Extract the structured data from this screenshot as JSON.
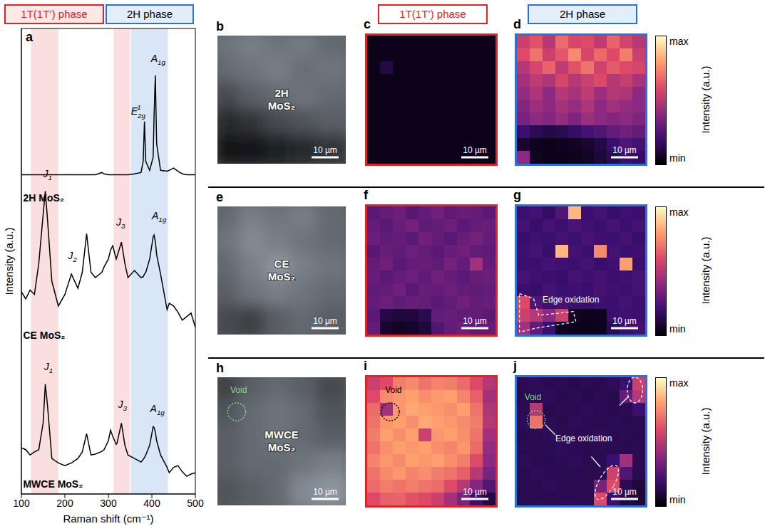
{
  "headers": {
    "left": "1T(1T’) phase",
    "right": "2H phase"
  },
  "chart_data": {
    "type": "line",
    "letter": "a",
    "x_label": "Raman shift (cm⁻¹)",
    "y_label": "Intensity (a.u.)",
    "x": [
      100,
      110,
      120,
      130,
      140,
      150,
      155,
      160,
      170,
      185,
      200,
      215,
      230,
      240,
      250,
      260,
      270,
      285,
      290,
      300,
      305,
      310,
      318,
      320,
      330,
      338,
      345,
      360,
      375,
      380,
      383,
      386,
      395,
      403,
      405,
      408,
      411,
      420,
      435,
      440,
      450,
      460,
      470,
      480,
      490,
      500
    ],
    "xlim": [
      100,
      500
    ],
    "xticks": [
      100,
      200,
      300,
      400,
      500
    ],
    "ylim": [
      0,
      10.5
    ],
    "tick_labels": "x",
    "series": [
      {
        "name": "2H MoS₂",
        "color": "#000000",
        "label_at": [
          104,
          6.6
        ],
        "values": [
          7.2,
          7.2,
          7.2,
          7.2,
          7.2,
          7.2,
          7.2,
          7.2,
          7.2,
          7.2,
          7.2,
          7.2,
          7.2,
          7.2,
          7.2,
          7.2,
          7.2,
          7.25,
          7.22,
          7.2,
          7.2,
          7.2,
          7.2,
          7.2,
          7.2,
          7.2,
          7.2,
          7.22,
          7.25,
          7.5,
          8.4,
          7.5,
          7.3,
          7.6,
          8.5,
          9.44,
          7.9,
          7.3,
          7.28,
          7.3,
          7.35,
          7.28,
          7.22,
          7.2,
          7.2,
          7.2
        ]
      },
      {
        "name": "CE MoS₂",
        "color": "#000000",
        "label_at": [
          104,
          3.5
        ],
        "values": [
          4.56,
          4.4,
          4.6,
          4.5,
          5.2,
          6.3,
          6.83,
          6.2,
          4.8,
          4.24,
          4.5,
          4.96,
          4.64,
          5.0,
          5.87,
          5.0,
          4.88,
          5.0,
          5.12,
          5.3,
          5.5,
          5.6,
          5.3,
          5.36,
          5.68,
          5.2,
          4.88,
          5.04,
          4.88,
          4.9,
          4.96,
          5.0,
          5.3,
          5.8,
          5.84,
          5.7,
          5.4,
          4.96,
          4.16,
          4.3,
          4.24,
          4.1,
          3.92,
          4.0,
          4.08,
          3.76
        ]
      },
      {
        "name": "MWCE MoS₂",
        "color": "#000000",
        "label_at": [
          104,
          0.15
        ],
        "values": [
          1.04,
          1.0,
          0.88,
          0.95,
          1.0,
          1.6,
          2.48,
          2.0,
          0.8,
          0.7,
          0.64,
          0.7,
          0.8,
          0.95,
          1.36,
          0.88,
          0.9,
          0.96,
          1.0,
          1.2,
          1.44,
          1.3,
          1.12,
          1.15,
          1.6,
          1.1,
          0.88,
          0.8,
          0.72,
          0.78,
          0.82,
          0.88,
          1.1,
          1.52,
          1.5,
          1.4,
          1.2,
          0.88,
          0.6,
          0.48,
          0.6,
          0.64,
          0.5,
          0.4,
          0.45,
          0.48
        ]
      }
    ],
    "bands": [
      {
        "x1": 122,
        "x2": 185,
        "color": "#f7b5b5"
      },
      {
        "x1": 312,
        "x2": 350,
        "color": "#f7b5b5"
      },
      {
        "x1": 352,
        "x2": 437,
        "color": "#a9c8ee"
      }
    ],
    "peak_labels": [
      {
        "base": "E",
        "sub": "2g",
        "sup": "1",
        "x": 352,
        "y": 8.55
      },
      {
        "base": "A",
        "sub": "1g",
        "x": 398,
        "y": 9.75
      },
      {
        "base": "J",
        "sub": "1",
        "x": 150,
        "y": 7.15
      },
      {
        "base": "J",
        "sub": "2",
        "x": 207,
        "y": 5.3
      },
      {
        "base": "J",
        "sub": "3",
        "x": 318,
        "y": 6.05
      },
      {
        "base": "A",
        "sub": "1g",
        "x": 400,
        "y": 6.2
      },
      {
        "base": "J",
        "sub": "1",
        "x": 152,
        "y": 2.8
      },
      {
        "base": "J",
        "sub": "3",
        "x": 322,
        "y": 1.95
      },
      {
        "base": "A",
        "sub": "1g",
        "x": 396,
        "y": 1.85
      }
    ]
  },
  "panels": [
    {
      "letter": "b",
      "kind": "optical",
      "label": [
        "2H",
        "MoS₂"
      ],
      "scale_bar": "10 µm",
      "brightness": [
        [
          0.55,
          0.6,
          0.55,
          0.58,
          0.5
        ],
        [
          0.5,
          0.55,
          0.6,
          0.52,
          0.55
        ],
        [
          0.35,
          0.45,
          0.5,
          0.55,
          0.5
        ],
        [
          0.2,
          0.25,
          0.35,
          0.4,
          0.45
        ],
        [
          0.1,
          0.12,
          0.15,
          0.2,
          0.25
        ]
      ]
    },
    {
      "letter": "c",
      "kind": "map",
      "color": "#e02424",
      "scale_bar": "10 µm",
      "cells": [
        [
          0.04,
          0.04,
          0.04,
          0.04,
          0.04,
          0.04,
          0.04,
          0.04,
          0.04,
          0.04
        ],
        [
          0.04,
          0.04,
          0.04,
          0.04,
          0.04,
          0.04,
          0.04,
          0.04,
          0.04,
          0.04
        ],
        [
          0.04,
          0.12,
          0.04,
          0.04,
          0.04,
          0.04,
          0.04,
          0.04,
          0.04,
          0.04
        ],
        [
          0.04,
          0.04,
          0.04,
          0.04,
          0.04,
          0.04,
          0.04,
          0.04,
          0.04,
          0.04
        ],
        [
          0.04,
          0.04,
          0.04,
          0.04,
          0.04,
          0.04,
          0.04,
          0.04,
          0.04,
          0.04
        ],
        [
          0.04,
          0.04,
          0.04,
          0.04,
          0.04,
          0.04,
          0.04,
          0.04,
          0.04,
          0.04
        ],
        [
          0.04,
          0.04,
          0.04,
          0.04,
          0.04,
          0.04,
          0.04,
          0.04,
          0.04,
          0.04
        ],
        [
          0.04,
          0.04,
          0.04,
          0.04,
          0.04,
          0.04,
          0.04,
          0.04,
          0.04,
          0.04
        ],
        [
          0.04,
          0.04,
          0.04,
          0.04,
          0.04,
          0.04,
          0.04,
          0.04,
          0.04,
          0.04
        ],
        [
          0.04,
          0.04,
          0.04,
          0.04,
          0.04,
          0.04,
          0.04,
          0.04,
          0.04,
          0.04
        ]
      ]
    },
    {
      "letter": "d",
      "kind": "map",
      "color": "#2a72d8",
      "scale_bar": "10 µm",
      "cells": [
        [
          0.55,
          0.62,
          0.5,
          0.68,
          0.58,
          0.6,
          0.52,
          0.66,
          0.57,
          0.5
        ],
        [
          0.6,
          0.7,
          0.55,
          0.63,
          0.75,
          0.58,
          0.68,
          0.6,
          0.72,
          0.55
        ],
        [
          0.5,
          0.58,
          0.66,
          0.52,
          0.62,
          0.7,
          0.56,
          0.64,
          0.6,
          0.58
        ],
        [
          0.45,
          0.52,
          0.48,
          0.58,
          0.5,
          0.55,
          0.6,
          0.5,
          0.54,
          0.47
        ],
        [
          0.42,
          0.48,
          0.4,
          0.5,
          0.46,
          0.52,
          0.44,
          0.5,
          0.48,
          0.4
        ],
        [
          0.38,
          0.44,
          0.4,
          0.46,
          0.42,
          0.48,
          0.4,
          0.45,
          0.42,
          0.4
        ],
        [
          0.35,
          0.4,
          0.38,
          0.42,
          0.36,
          0.44,
          0.4,
          0.38,
          0.4,
          0.36
        ],
        [
          0.2,
          0.15,
          0.12,
          0.14,
          0.18,
          0.22,
          0.25,
          0.3,
          0.33,
          0.3
        ],
        [
          0.08,
          0.05,
          0.04,
          0.05,
          0.06,
          0.08,
          0.12,
          0.2,
          0.25,
          0.22
        ],
        [
          0.4,
          0.06,
          0.04,
          0.04,
          0.05,
          0.06,
          0.1,
          0.15,
          0.2,
          0.18
        ]
      ]
    },
    {
      "letter": "e",
      "kind": "optical",
      "label": [
        "CE",
        "MoS₂"
      ],
      "scale_bar": "10 µm",
      "brightness": [
        [
          0.5,
          0.6,
          0.55,
          0.6,
          0.5
        ],
        [
          0.55,
          0.65,
          0.6,
          0.55,
          0.5
        ],
        [
          0.5,
          0.6,
          0.7,
          0.6,
          0.55
        ],
        [
          0.45,
          0.55,
          0.6,
          0.55,
          0.5
        ],
        [
          0.35,
          0.3,
          0.45,
          0.5,
          0.45
        ]
      ]
    },
    {
      "letter": "f",
      "kind": "map",
      "color": "#e02424",
      "scale_bar": "10 µm",
      "cells": [
        [
          0.28,
          0.3,
          0.32,
          0.27,
          0.3,
          0.33,
          0.29,
          0.31,
          0.3,
          0.28
        ],
        [
          0.3,
          0.27,
          0.31,
          0.34,
          0.29,
          0.3,
          0.32,
          0.28,
          0.3,
          0.31
        ],
        [
          0.32,
          0.29,
          0.3,
          0.28,
          0.33,
          0.3,
          0.27,
          0.31,
          0.34,
          0.3
        ],
        [
          0.27,
          0.31,
          0.29,
          0.32,
          0.3,
          0.28,
          0.31,
          0.33,
          0.3,
          0.29
        ],
        [
          0.3,
          0.33,
          0.28,
          0.3,
          0.31,
          0.29,
          0.34,
          0.3,
          0.45,
          0.3
        ],
        [
          0.31,
          0.28,
          0.3,
          0.32,
          0.29,
          0.33,
          0.3,
          0.28,
          0.31,
          0.32
        ],
        [
          0.29,
          0.3,
          0.33,
          0.28,
          0.31,
          0.3,
          0.32,
          0.3,
          0.29,
          0.3
        ],
        [
          0.3,
          0.32,
          0.29,
          0.31,
          0.3,
          0.28,
          0.3,
          0.33,
          0.3,
          0.31
        ],
        [
          0.28,
          0.12,
          0.1,
          0.11,
          0.14,
          0.3,
          0.31,
          0.29,
          0.3,
          0.28
        ],
        [
          0.3,
          0.08,
          0.06,
          0.07,
          0.1,
          0.25,
          0.3,
          0.32,
          0.29,
          0.3
        ]
      ]
    },
    {
      "letter": "g",
      "kind": "map",
      "color": "#2a72d8",
      "scale_bar": "10 µm",
      "annotations": [
        "Edge oxidation"
      ],
      "cells": [
        [
          0.2,
          0.22,
          0.18,
          0.25,
          0.85,
          0.2,
          0.22,
          0.19,
          0.21,
          0.2
        ],
        [
          0.22,
          0.19,
          0.23,
          0.2,
          0.24,
          0.21,
          0.2,
          0.23,
          0.2,
          0.22
        ],
        [
          0.19,
          0.21,
          0.2,
          0.22,
          0.2,
          0.23,
          0.21,
          0.2,
          0.22,
          0.19
        ],
        [
          0.21,
          0.23,
          0.19,
          0.85,
          0.22,
          0.2,
          0.75,
          0.22,
          0.2,
          0.21
        ],
        [
          0.2,
          0.2,
          0.22,
          0.21,
          0.2,
          0.22,
          0.19,
          0.21,
          0.8,
          0.2
        ],
        [
          0.23,
          0.21,
          0.2,
          0.19,
          0.23,
          0.21,
          0.22,
          0.2,
          0.21,
          0.23
        ],
        [
          0.2,
          0.19,
          0.22,
          0.2,
          0.21,
          0.2,
          0.23,
          0.21,
          0.2,
          0.22
        ],
        [
          0.6,
          0.25,
          0.21,
          0.22,
          0.2,
          0.19,
          0.21,
          0.2,
          0.22,
          0.2
        ],
        [
          0.55,
          0.5,
          0.4,
          0.55,
          0.06,
          0.05,
          0.05,
          0.2,
          0.21,
          0.2
        ],
        [
          0.45,
          0.3,
          0.2,
          0.05,
          0.04,
          0.04,
          0.05,
          0.15,
          0.2,
          0.21
        ]
      ]
    },
    {
      "letter": "h",
      "kind": "optical",
      "label": [
        "MWCE",
        "MoS₂"
      ],
      "scale_bar": "10 µm",
      "annotations": [
        "Void"
      ],
      "brightness": [
        [
          0.3,
          0.45,
          0.5,
          0.45,
          0.35
        ],
        [
          0.4,
          0.5,
          0.55,
          0.5,
          0.4
        ],
        [
          0.45,
          0.5,
          0.55,
          0.5,
          0.45
        ],
        [
          0.45,
          0.5,
          0.5,
          0.55,
          0.6
        ],
        [
          0.4,
          0.45,
          0.5,
          0.65,
          0.7
        ]
      ]
    },
    {
      "letter": "i",
      "kind": "map",
      "color": "#e02424",
      "scale_bar": "10 µm",
      "annotations": [
        "Void"
      ],
      "cells": [
        [
          0.55,
          0.6,
          0.72,
          0.75,
          0.7,
          0.74,
          0.72,
          0.68,
          0.6,
          0.5
        ],
        [
          0.6,
          0.75,
          0.78,
          0.8,
          0.76,
          0.79,
          0.8,
          0.74,
          0.65,
          0.45
        ],
        [
          0.68,
          0.45,
          0.78,
          0.82,
          0.8,
          0.78,
          0.76,
          0.8,
          0.7,
          0.48
        ],
        [
          0.7,
          0.78,
          0.8,
          0.76,
          0.82,
          0.8,
          0.78,
          0.75,
          0.72,
          0.5
        ],
        [
          0.72,
          0.8,
          0.76,
          0.8,
          0.55,
          0.78,
          0.8,
          0.76,
          0.7,
          0.45
        ],
        [
          0.7,
          0.76,
          0.8,
          0.78,
          0.8,
          0.76,
          0.74,
          0.78,
          0.68,
          0.42
        ],
        [
          0.74,
          0.78,
          0.75,
          0.8,
          0.78,
          0.8,
          0.76,
          0.72,
          0.6,
          0.4
        ],
        [
          0.7,
          0.75,
          0.78,
          0.74,
          0.76,
          0.72,
          0.7,
          0.65,
          0.5,
          0.35
        ],
        [
          0.68,
          0.72,
          0.7,
          0.72,
          0.7,
          0.68,
          0.6,
          0.5,
          0.38,
          0.25
        ],
        [
          0.6,
          0.65,
          0.66,
          0.62,
          0.6,
          0.55,
          0.45,
          0.35,
          0.2,
          0.12
        ]
      ]
    },
    {
      "letter": "j",
      "kind": "map",
      "color": "#2a72d8",
      "scale_bar": "10 µm",
      "annotations": [
        "Void",
        "Edge oxidation"
      ],
      "cells": [
        [
          0.15,
          0.16,
          0.14,
          0.15,
          0.13,
          0.15,
          0.14,
          0.16,
          0.2,
          0.55
        ],
        [
          0.14,
          0.15,
          0.16,
          0.14,
          0.15,
          0.13,
          0.15,
          0.14,
          0.3,
          0.5
        ],
        [
          0.15,
          0.5,
          0.14,
          0.15,
          0.14,
          0.16,
          0.15,
          0.14,
          0.15,
          0.2
        ],
        [
          0.16,
          0.7,
          0.15,
          0.14,
          0.16,
          0.15,
          0.14,
          0.15,
          0.14,
          0.15
        ],
        [
          0.14,
          0.15,
          0.16,
          0.15,
          0.14,
          0.15,
          0.16,
          0.14,
          0.15,
          0.14
        ],
        [
          0.15,
          0.14,
          0.15,
          0.16,
          0.15,
          0.14,
          0.15,
          0.15,
          0.14,
          0.15
        ],
        [
          0.16,
          0.15,
          0.14,
          0.15,
          0.16,
          0.15,
          0.14,
          0.2,
          0.45,
          0.15
        ],
        [
          0.14,
          0.16,
          0.15,
          0.14,
          0.15,
          0.14,
          0.15,
          0.55,
          0.25,
          0.14
        ],
        [
          0.15,
          0.14,
          0.16,
          0.15,
          0.14,
          0.15,
          0.35,
          0.6,
          0.15,
          0.1
        ],
        [
          0.14,
          0.15,
          0.14,
          0.15,
          0.15,
          0.14,
          0.6,
          0.2,
          0.12,
          0.1
        ]
      ]
    }
  ],
  "colorbar": {
    "label": "Intensity (a.u.)",
    "range": [
      0,
      1
    ],
    "ticks": [
      {
        "value": 0,
        "label": "min"
      },
      {
        "value": 1,
        "label": "max"
      }
    ],
    "colors": [
      "#000004",
      "#3b0f70",
      "#8c2981",
      "#de4968",
      "#fe9f6d",
      "#fcfdbf"
    ]
  }
}
